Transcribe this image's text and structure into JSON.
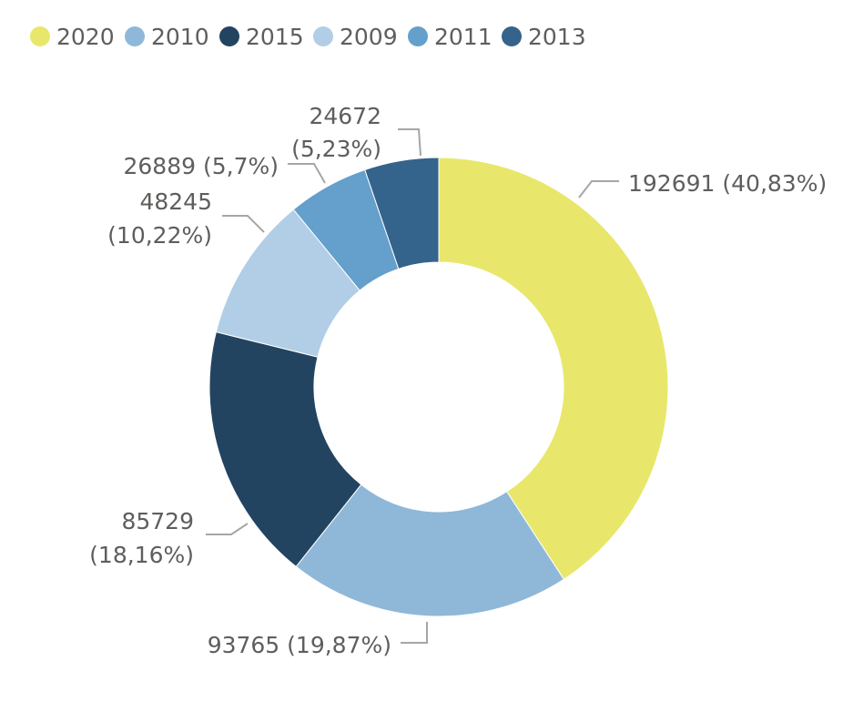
{
  "chart_data": {
    "type": "pie",
    "variant": "donut",
    "legend_position": "top-left",
    "series": [
      {
        "name": "2020",
        "value": 192691,
        "label": "192691 (40,83%)",
        "color": "#e8e76b"
      },
      {
        "name": "2010",
        "value": 93765,
        "label": "93765 (19,87%)",
        "color": "#8fb8d8"
      },
      {
        "name": "2015",
        "value": 85729,
        "label": "85729 (18,16%)",
        "color": "#234460"
      },
      {
        "name": "2009",
        "value": 48245,
        "label": "48245 (10,22%)",
        "color": "#b2cee6"
      },
      {
        "name": "2011",
        "value": 26889,
        "label": "26889 (5,7%)",
        "color": "#659fcb"
      },
      {
        "name": "2013",
        "value": 24672,
        "label": "24672 (5,23%)",
        "color": "#34638c"
      }
    ]
  }
}
